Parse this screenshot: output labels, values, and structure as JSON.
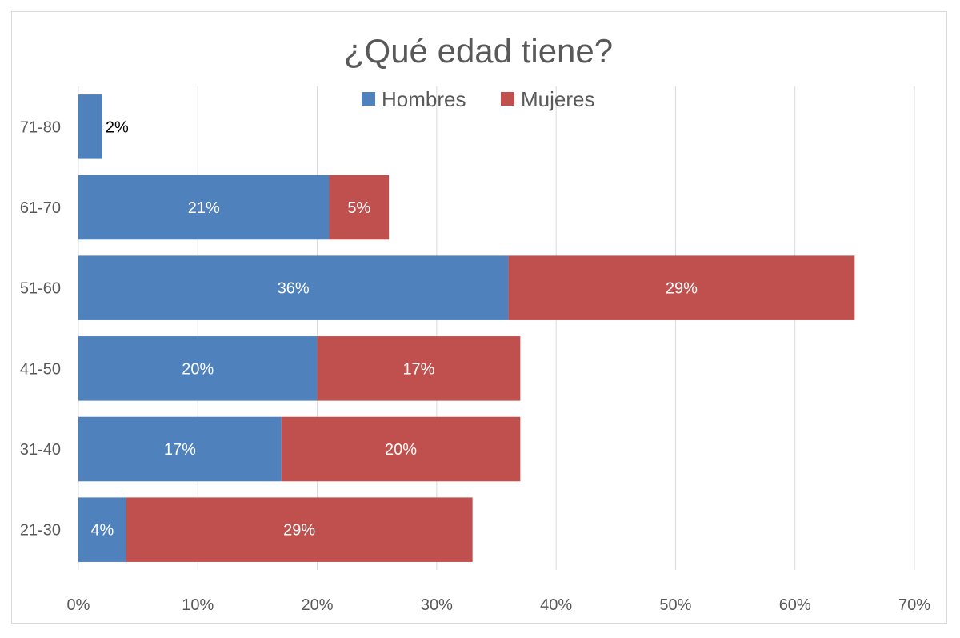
{
  "chart_data": {
    "type": "bar",
    "orientation": "horizontal",
    "stacked": true,
    "title": "¿Qué edad tiene?",
    "categories": [
      "21-30",
      "31-40",
      "41-50",
      "51-60",
      "61-70",
      "71-80"
    ],
    "series": [
      {
        "name": "Hombres",
        "color": "#4f81bd",
        "values": [
          4,
          17,
          20,
          36,
          21,
          2
        ],
        "labels": [
          "4%",
          "17%",
          "20%",
          "36%",
          "21%",
          "2%"
        ]
      },
      {
        "name": "Mujeres",
        "color": "#c0504d",
        "values": [
          29,
          20,
          17,
          29,
          5,
          0
        ],
        "labels": [
          "29%",
          "20%",
          "17%",
          "29%",
          "5%",
          ""
        ]
      }
    ],
    "x_ticks": [
      "0%",
      "10%",
      "20%",
      "30%",
      "40%",
      "50%",
      "60%",
      "70%"
    ],
    "xlim": [
      0,
      70
    ],
    "grid": true,
    "legend_position": "top"
  }
}
